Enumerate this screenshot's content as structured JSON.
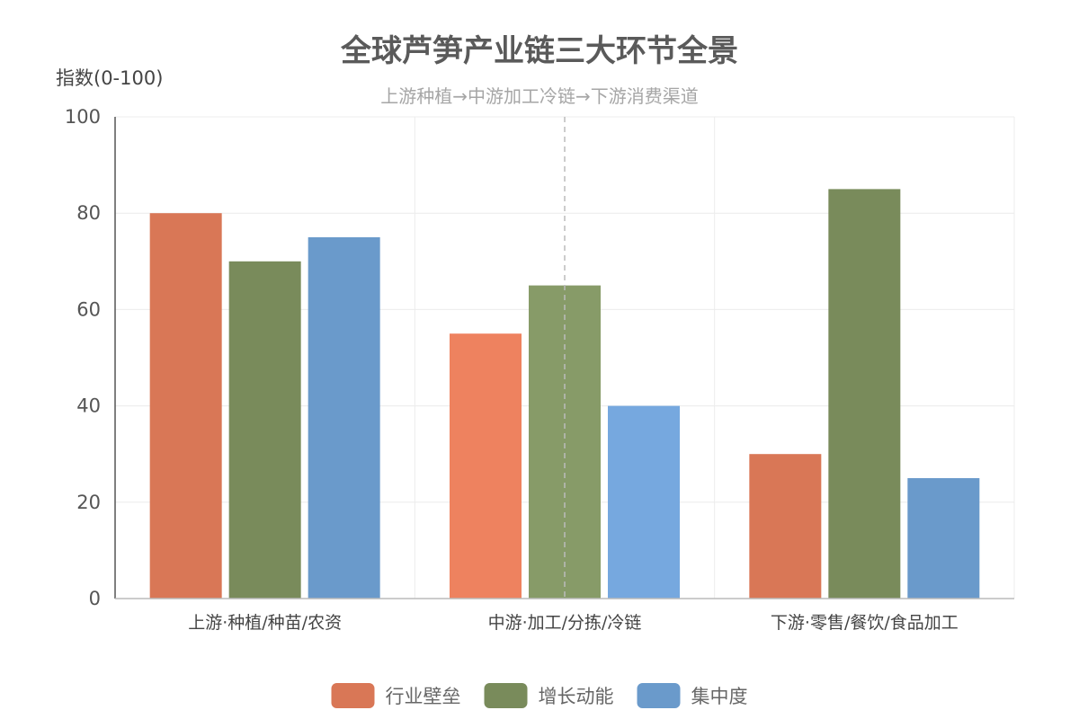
{
  "chart_data": {
    "type": "bar",
    "title": "全球芦笋产业链三大环节全景",
    "subtitle": "上游种植→中游加工冷链→下游消费渠道",
    "ylabel": "指数(0-100)",
    "ylim": [
      0,
      100
    ],
    "yticks": [
      0,
      20,
      40,
      60,
      80,
      100
    ],
    "grid": true,
    "legend_position": "bottom",
    "categories": [
      "上游·种植/种苗/农资",
      "中游·加工/分拣/冷链",
      "下游·零售/餐饮/食品加工"
    ],
    "series": [
      {
        "name": "行业壁垒",
        "values": [
          80,
          55,
          30
        ],
        "color": "#d97756"
      },
      {
        "name": "增长动能",
        "values": [
          70,
          65,
          85
        ],
        "color": "#798b5b"
      },
      {
        "name": "集中度",
        "values": [
          75,
          40,
          25
        ],
        "color": "#6a9acb"
      }
    ],
    "highlight_category": 1,
    "highlight_colors": [
      "#ee825f",
      "#879b68",
      "#76a8df"
    ]
  }
}
